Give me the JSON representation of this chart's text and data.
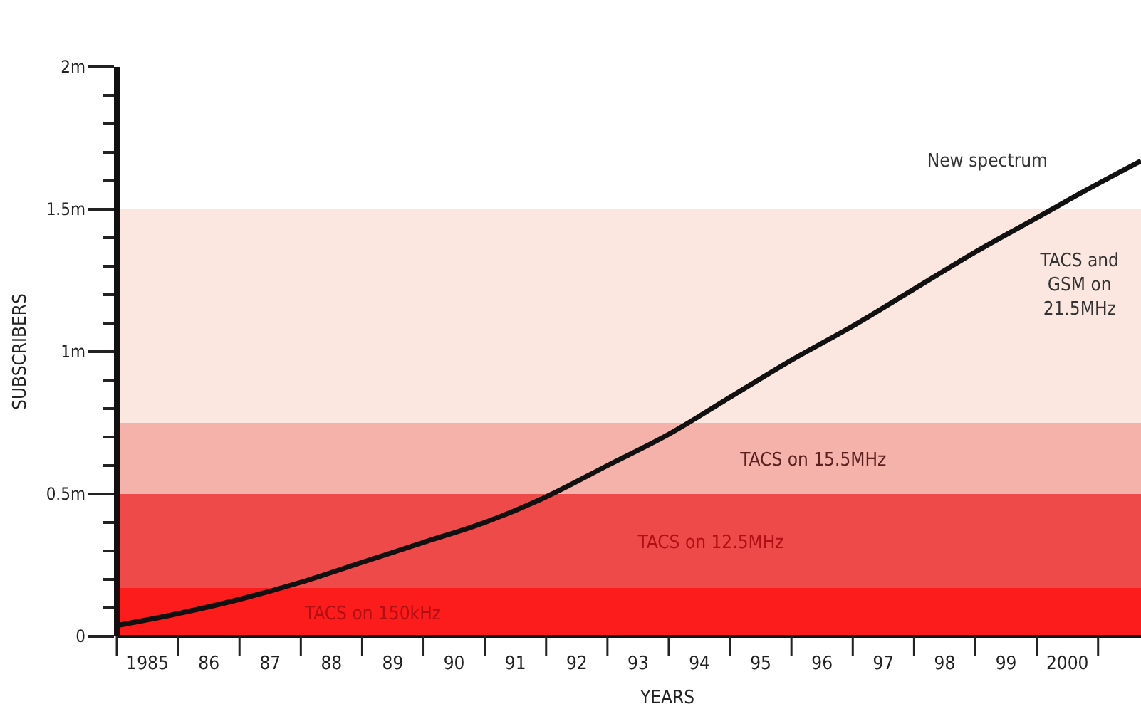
{
  "chart_data": {
    "type": "line",
    "xlabel": "YEARS",
    "ylabel": "SUBSCRIBERS",
    "x": [
      1984.55,
      1985.5,
      1986.5,
      1987.5,
      1988.5,
      1989.5,
      1990.5,
      1991.5,
      1992.5,
      1993.5,
      1994.5,
      1995.5,
      1996.5,
      1997.5,
      1998.5,
      1999.5,
      2000.5,
      2001.2
    ],
    "series": [
      {
        "color": "#111111",
        "values": [
          0.04,
          0.08,
          0.13,
          0.19,
          0.26,
          0.33,
          0.4,
          0.49,
          0.6,
          0.71,
          0.84,
          0.97,
          1.09,
          1.22,
          1.35,
          1.47,
          1.59,
          1.67
        ]
      }
    ],
    "xlim": [
      1984.5,
      2001.2
    ],
    "xticks": [
      {
        "value": 1984.5,
        "label": null
      },
      {
        "value": 1985,
        "label": "1985"
      },
      {
        "value": 1985.5,
        "label": null
      },
      {
        "value": 1986,
        "label": "86"
      },
      {
        "value": 1986.5,
        "label": null
      },
      {
        "value": 1987,
        "label": "87"
      },
      {
        "value": 1987.5,
        "label": null
      },
      {
        "value": 1988,
        "label": "88"
      },
      {
        "value": 1988.5,
        "label": null
      },
      {
        "value": 1989,
        "label": "89"
      },
      {
        "value": 1989.5,
        "label": null
      },
      {
        "value": 1990,
        "label": "90"
      },
      {
        "value": 1990.5,
        "label": null
      },
      {
        "value": 1991,
        "label": "91"
      },
      {
        "value": 1991.5,
        "label": null
      },
      {
        "value": 1992,
        "label": "92"
      },
      {
        "value": 1992.5,
        "label": null
      },
      {
        "value": 1993,
        "label": "93"
      },
      {
        "value": 1993.5,
        "label": null
      },
      {
        "value": 1994,
        "label": "94"
      },
      {
        "value": 1994.5,
        "label": null
      },
      {
        "value": 1995,
        "label": "95"
      },
      {
        "value": 1995.5,
        "label": null
      },
      {
        "value": 1996,
        "label": "96"
      },
      {
        "value": 1996.5,
        "label": null
      },
      {
        "value": 1997,
        "label": "97"
      },
      {
        "value": 1997.5,
        "label": null
      },
      {
        "value": 1998,
        "label": "98"
      },
      {
        "value": 1998.5,
        "label": null
      },
      {
        "value": 1999,
        "label": "99"
      },
      {
        "value": 1999.5,
        "label": null
      },
      {
        "value": 2000,
        "label": "2000"
      },
      {
        "value": 2000.5,
        "label": null
      }
    ],
    "ylim": [
      0,
      2
    ],
    "yticks": [
      0,
      {
        "value": 0.1,
        "label": null
      },
      {
        "value": 0.2,
        "label": null
      },
      {
        "value": 0.3,
        "label": null
      },
      {
        "value": 0.4,
        "label": null
      },
      {
        "value": 0.5,
        "label": "0.5m"
      },
      {
        "value": 0.6,
        "label": null
      },
      {
        "value": 0.7,
        "label": null
      },
      {
        "value": 0.8,
        "label": null
      },
      {
        "value": 0.9,
        "label": null
      },
      {
        "value": 1,
        "label": "1m"
      },
      {
        "value": 1.1,
        "label": null
      },
      {
        "value": 1.2,
        "label": null
      },
      {
        "value": 1.3,
        "label": null
      },
      {
        "value": 1.4,
        "label": null
      },
      {
        "value": 1.5,
        "label": "1.5m"
      },
      {
        "value": 1.6,
        "label": null
      },
      {
        "value": 1.7,
        "label": null
      },
      {
        "value": 1.8,
        "label": null
      },
      {
        "value": 1.9,
        "label": null
      },
      {
        "value": 2,
        "label": "2m"
      }
    ],
    "bands": [
      {
        "axis": "y",
        "from": 0,
        "to": 0.17,
        "label": "TACS on 150kHz",
        "color": "#fd1c1c"
      },
      {
        "axis": "y",
        "from": 0.17,
        "to": 0.5,
        "label": "TACS on 12.5MHz",
        "color": "#ef4a4a"
      },
      {
        "axis": "y",
        "from": 0.5,
        "to": 0.75,
        "label": "TACS on 15.5MHz",
        "color": "#f4b2aa"
      },
      {
        "axis": "y",
        "from": 0.75,
        "to": 1.5,
        "label": "TACS and GSM on 21.5MHz",
        "color": "#fbe7df"
      }
    ],
    "annotations": [
      "New spectrum"
    ],
    "grid": false,
    "marker": "none",
    "line_style": "solid"
  }
}
